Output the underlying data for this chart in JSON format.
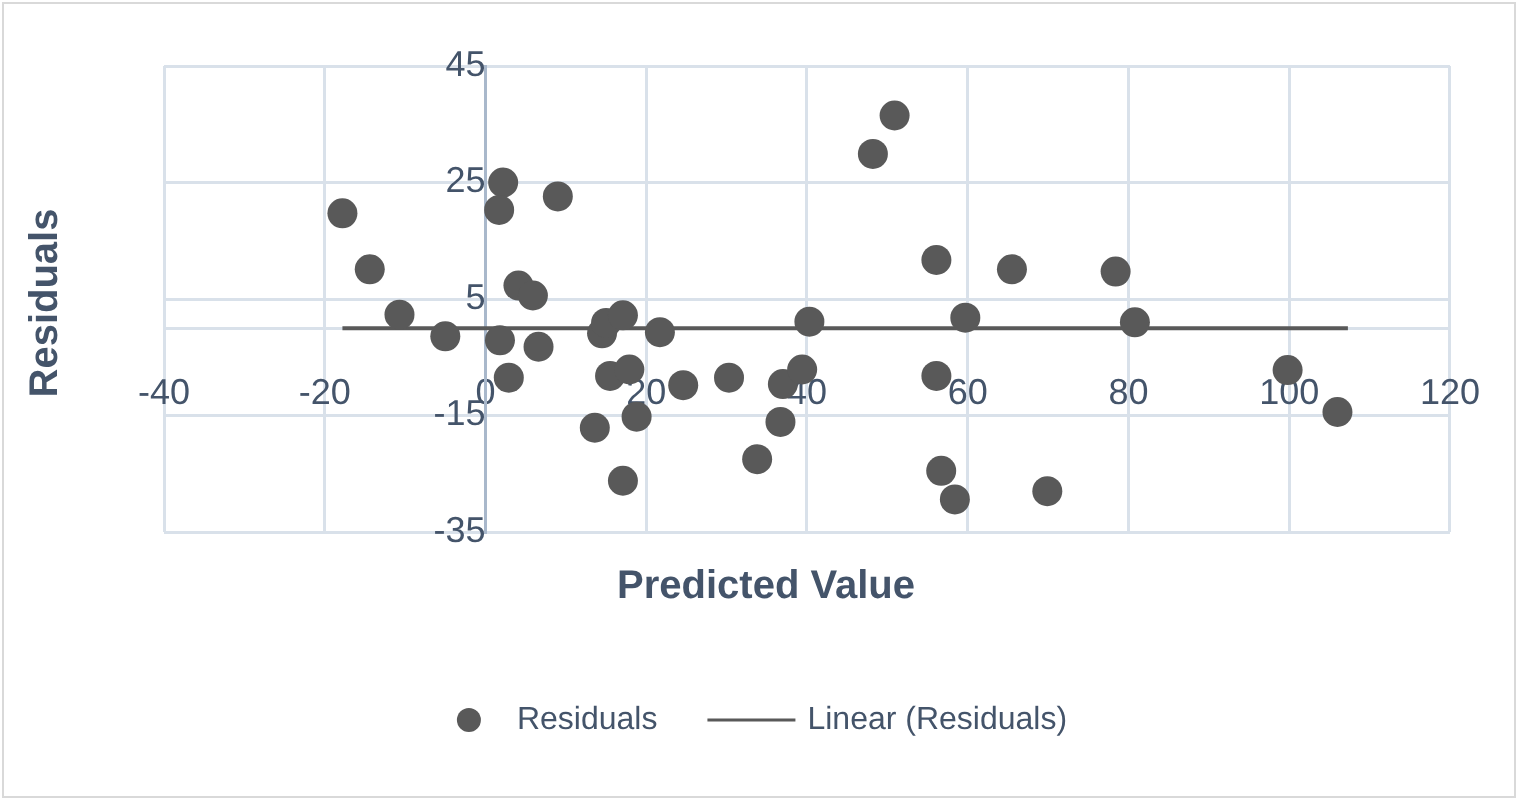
{
  "chart_data": {
    "type": "scatter",
    "xlabel": "Predicted Value",
    "ylabel": "Residuals",
    "xlim": [
      -40,
      120
    ],
    "xticks": [
      -40,
      -20,
      0,
      20,
      40,
      60,
      80,
      100,
      120
    ],
    "ylim": [
      -35,
      45
    ],
    "yticks": [
      -35,
      -15,
      5,
      25,
      45
    ],
    "grid": true,
    "legend": "bottom",
    "marker": "circle",
    "series": [
      {
        "name": "Residuals",
        "color": "#595959",
        "x": [
          -17.8,
          -14.4,
          -10.7,
          -5.0,
          1.8,
          2.2,
          1.7,
          2.9,
          4.1,
          5.9,
          6.6,
          9.0,
          13.6,
          14.5,
          15.0,
          15.5,
          17.1,
          17.1,
          17.9,
          18.8,
          21.7,
          24.6,
          30.3,
          33.8,
          36.7,
          37.0,
          39.4,
          40.3,
          50.9,
          48.2,
          56.1,
          65.5,
          78.4,
          59.7,
          80.8,
          56.1,
          99.8,
          106.0,
          56.7,
          58.4,
          69.9
        ],
        "values": [
          19.7,
          10.1,
          2.3,
          -1.4,
          -2.1,
          25.0,
          20.3,
          -8.5,
          7.3,
          5.6,
          -3.2,
          22.6,
          -17.1,
          -0.9,
          0.9,
          -8.2,
          2.2,
          -26.2,
          -7.1,
          -15.2,
          -0.7,
          -9.8,
          -8.5,
          -22.5,
          -16.1,
          -9.6,
          -7.1,
          1.1,
          36.5,
          29.9,
          11.7,
          10.1,
          9.7,
          1.8,
          1.0,
          -8.2,
          -7.2,
          -14.4,
          -24.5,
          -29.4,
          -28.0
        ]
      },
      {
        "name": "Linear (Residuals)",
        "type": "line",
        "color": "#595959",
        "marker": "none",
        "line_style": "solid",
        "x": [
          -17.8,
          107.3
        ],
        "values": [
          0,
          0
        ]
      }
    ]
  }
}
